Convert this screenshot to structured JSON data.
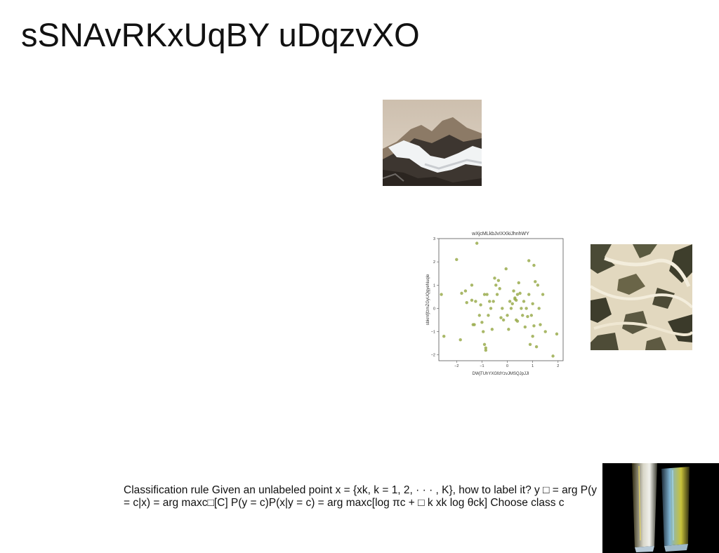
{
  "slide": {
    "title": "sSNAvRKxUqBY uDqzvXO",
    "body_text": "Classification rule Given an unlabeled point x = {xk, k = 1, 2, · · · , K}, how to label it? y □ = arg P(y = c|x) = arg maxc□[C] P(y = c)P(x|y = c) = arg maxc[log πc + □ k xk log θck] Choose class c"
  },
  "images": {
    "mountain": "snowy-mountain-photo",
    "texture": "rock-texture-photo",
    "glass": "glass-prisms-photo"
  },
  "chart_data": {
    "type": "scatter",
    "title": "wXjcMLkbJvIXXkiJhnhWY",
    "xlabel": "DWjTUhYXGfdYzvJMSQJpJJl",
    "ylabel": "sbkmfjfzmZGyUQgyeNuqle",
    "xlim": [
      -2.7,
      2.2
    ],
    "ylim": [
      -2.25,
      3.0
    ],
    "xticks": [
      "−2",
      "−1",
      "0",
      "1",
      "2"
    ],
    "yticks": [
      "−2",
      "−1",
      "0",
      "1",
      "2",
      "3"
    ],
    "color": "#9aab4d",
    "points": [
      [
        -2.6,
        0.6
      ],
      [
        -2.5,
        -1.2
      ],
      [
        -2.0,
        2.1
      ],
      [
        -1.85,
        -1.35
      ],
      [
        -1.8,
        0.65
      ],
      [
        -1.65,
        0.75
      ],
      [
        -1.6,
        0.25
      ],
      [
        -1.4,
        1.0
      ],
      [
        -1.3,
        -0.7
      ],
      [
        -1.25,
        0.3
      ],
      [
        -1.4,
        0.35
      ],
      [
        -1.35,
        -0.7
      ],
      [
        -1.2,
        2.8
      ],
      [
        -1.1,
        -0.3
      ],
      [
        -1.05,
        0.15
      ],
      [
        -1.0,
        -0.6
      ],
      [
        -0.95,
        -1.0
      ],
      [
        -0.9,
        -1.55
      ],
      [
        -0.85,
        -1.8
      ],
      [
        -0.9,
        0.6
      ],
      [
        -0.8,
        0.6
      ],
      [
        -0.75,
        -0.3
      ],
      [
        -0.7,
        0.3
      ],
      [
        -0.65,
        0.0
      ],
      [
        -0.6,
        -0.9
      ],
      [
        -0.55,
        0.3
      ],
      [
        -0.5,
        1.3
      ],
      [
        -0.45,
        1.0
      ],
      [
        -0.4,
        0.6
      ],
      [
        -0.35,
        1.2
      ],
      [
        -0.3,
        0.85
      ],
      [
        -0.25,
        -0.4
      ],
      [
        -0.2,
        0.0
      ],
      [
        -0.15,
        -0.5
      ],
      [
        -0.05,
        1.7
      ],
      [
        0.0,
        -0.3
      ],
      [
        0.05,
        -0.9
      ],
      [
        0.1,
        0.3
      ],
      [
        0.15,
        0.0
      ],
      [
        0.2,
        0.2
      ],
      [
        0.25,
        0.75
      ],
      [
        0.3,
        0.45
      ],
      [
        0.35,
        -0.5
      ],
      [
        0.35,
        0.35
      ],
      [
        0.4,
        0.6
      ],
      [
        0.4,
        -0.55
      ],
      [
        0.45,
        1.1
      ],
      [
        0.5,
        0.65
      ],
      [
        0.55,
        0.0
      ],
      [
        0.6,
        -0.3
      ],
      [
        0.65,
        0.3
      ],
      [
        0.7,
        -0.8
      ],
      [
        0.75,
        0.0
      ],
      [
        0.8,
        -0.35
      ],
      [
        0.85,
        0.6
      ],
      [
        0.85,
        2.05
      ],
      [
        0.9,
        -1.55
      ],
      [
        0.95,
        -0.3
      ],
      [
        1.0,
        0.2
      ],
      [
        1.0,
        -1.2
      ],
      [
        1.05,
        -0.75
      ],
      [
        1.1,
        1.15
      ],
      [
        1.15,
        -1.65
      ],
      [
        1.2,
        1.0
      ],
      [
        1.25,
        0.0
      ],
      [
        1.3,
        -0.7
      ],
      [
        1.4,
        0.6
      ],
      [
        1.5,
        -1.0
      ],
      [
        1.8,
        -2.05
      ],
      [
        1.95,
        -1.1
      ],
      [
        -0.85,
        -1.7
      ],
      [
        0.3,
        0.4
      ],
      [
        1.05,
        1.85
      ]
    ]
  }
}
